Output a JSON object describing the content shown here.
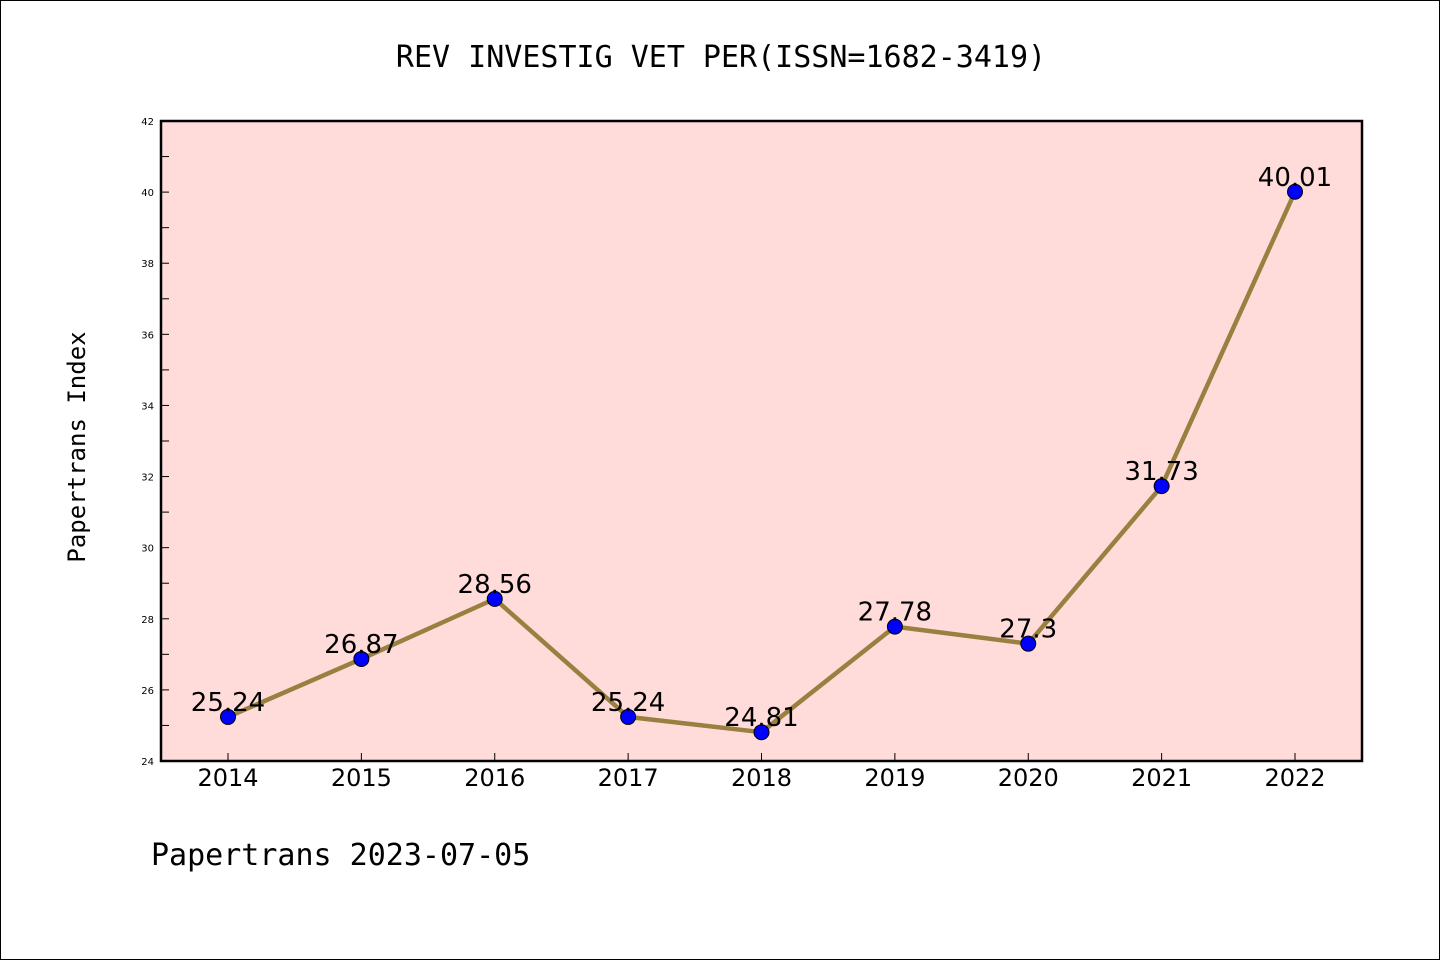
{
  "chart_data": {
    "type": "line",
    "title": "REV INVESTIG VET PER(ISSN=1682-3419)",
    "ylabel": "Papertrans Index",
    "xlabel": "",
    "footer": "Papertrans 2023-07-05",
    "categories": [
      "2014",
      "2015",
      "2016",
      "2017",
      "2018",
      "2019",
      "2020",
      "2021",
      "2022"
    ],
    "values": [
      25.24,
      26.87,
      28.56,
      25.24,
      24.81,
      27.78,
      27.3,
      31.73,
      40.01
    ],
    "value_labels": [
      "25.24",
      "26.87",
      "28.56",
      "25.24",
      "24.81",
      "27.78",
      "27.3",
      "31.73",
      "40.01"
    ],
    "ylim": [
      24,
      42
    ],
    "yticks": [
      "24",
      "26",
      "28",
      "30",
      "32",
      "34",
      "36",
      "38",
      "40",
      "42"
    ],
    "grid": false,
    "colors": {
      "plot_background": "#ffdcda",
      "line": "#9a8040",
      "marker": "#0000ff"
    }
  }
}
